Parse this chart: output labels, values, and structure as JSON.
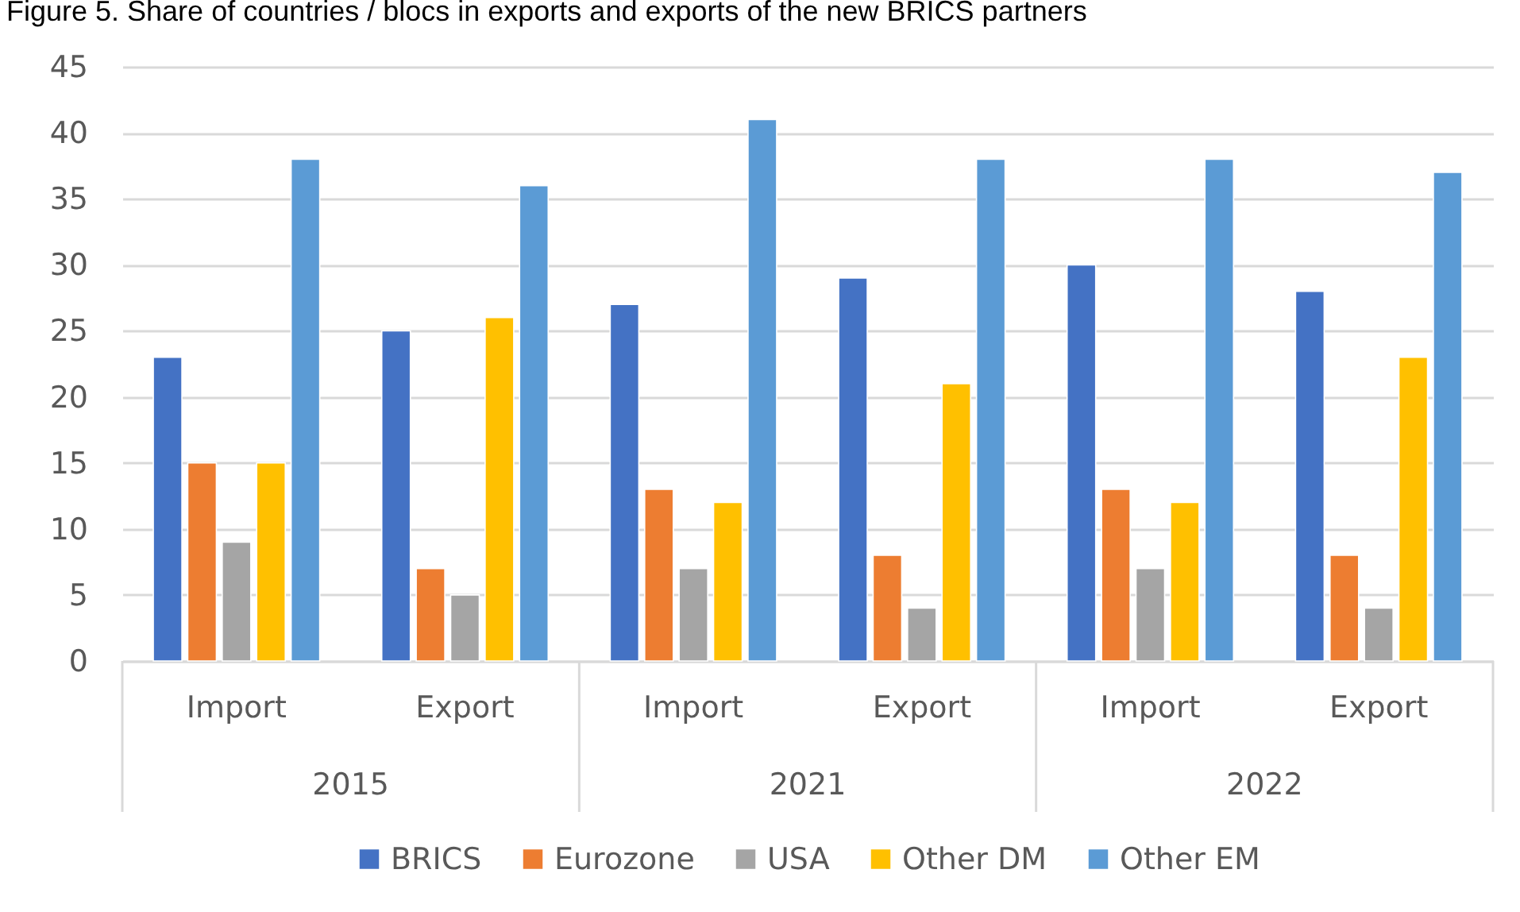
{
  "chart_data": {
    "type": "bar",
    "title": "Figure 5. Share of countries / blocs in exports and exports of the new BRICS partners",
    "categories": [
      "Import",
      "Export",
      "Import",
      "Export",
      "Import",
      "Export"
    ],
    "annotations": [
      "2015",
      "2021",
      "2022"
    ],
    "series": [
      {
        "name": "BRICS",
        "color": "#4472c4",
        "values": [
          23,
          25,
          27,
          29,
          30,
          28
        ]
      },
      {
        "name": "Eurozone",
        "color": "#ed7d31",
        "values": [
          15,
          7,
          13,
          8,
          13,
          8
        ]
      },
      {
        "name": "USA",
        "color": "#a5a5a5",
        "values": [
          9,
          5,
          7,
          4,
          7,
          4
        ]
      },
      {
        "name": "Other DM",
        "color": "#ffc000",
        "values": [
          15,
          26,
          12,
          21,
          12,
          23
        ]
      },
      {
        "name": "Other EM",
        "color": "#5b9bd5",
        "values": [
          38,
          36,
          41,
          38,
          38,
          37
        ]
      }
    ],
    "ylim": [
      0,
      45
    ],
    "yticks": [
      0,
      5,
      10,
      15,
      20,
      25,
      30,
      35,
      40,
      45
    ],
    "grid": "y",
    "legend": "bottom"
  }
}
